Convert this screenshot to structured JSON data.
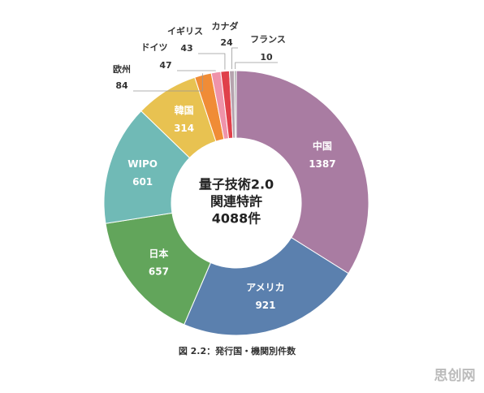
{
  "chart_data": {
    "type": "donut",
    "center_text": [
      "量子技術2.0",
      "関連特許",
      "4088件"
    ],
    "caption": "図 2.2：発行国・機関別件数",
    "categories": [
      "中国",
      "アメリカ",
      "日本",
      "WIPO",
      "韓国",
      "欧州",
      "ドイツ",
      "イギリス",
      "カナダ",
      "フランス"
    ],
    "values": [
      1387,
      921,
      657,
      601,
      314,
      84,
      47,
      43,
      24,
      10
    ],
    "colors": [
      "#a97ca2",
      "#5b80ae",
      "#62a55b",
      "#70bab6",
      "#e8c251",
      "#f08c36",
      "#ef93aa",
      "#e0404a",
      "#b6a3ae",
      "#a8a8a8"
    ]
  },
  "watermark": "思创网"
}
